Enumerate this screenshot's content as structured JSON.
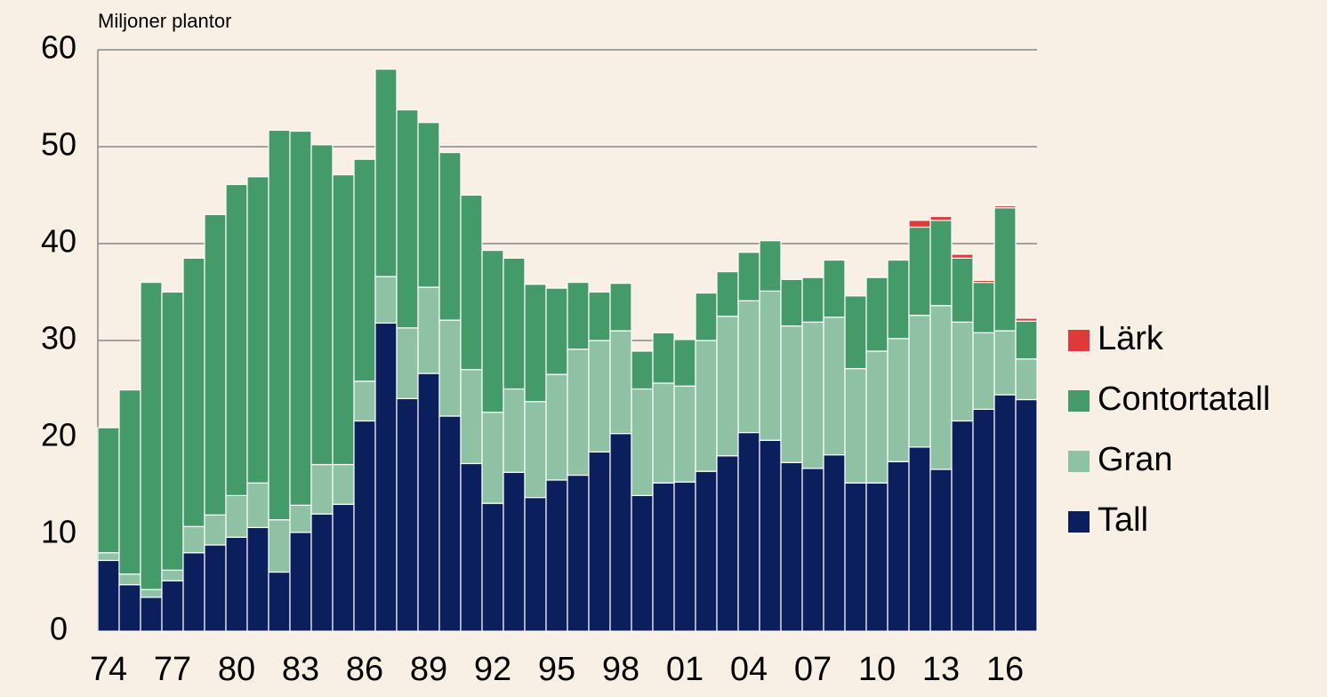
{
  "chart_data": {
    "type": "stacked_bar",
    "y_axis_label": "Miljoner plantor",
    "categories": [
      "74",
      null,
      null,
      "77",
      null,
      null,
      "80",
      null,
      null,
      "83",
      null,
      null,
      "86",
      null,
      null,
      "89",
      null,
      null,
      "92",
      null,
      null,
      "95",
      null,
      null,
      "98",
      null,
      null,
      "01",
      null,
      null,
      "04",
      null,
      null,
      "07",
      null,
      null,
      "10",
      null,
      null,
      "13",
      null,
      null,
      "16",
      null
    ],
    "series": [
      {
        "name": "Tall",
        "color": "#0b1f5c",
        "values": [
          7.3,
          4.8,
          3.5,
          5.2,
          8.1,
          8.9,
          9.7,
          10.7,
          6.1,
          10.2,
          12.1,
          13.1,
          21.7,
          31.8,
          24.0,
          26.6,
          22.2,
          17.3,
          13.2,
          16.4,
          13.8,
          15.6,
          16.1,
          18.5,
          20.4,
          14.0,
          15.3,
          15.4,
          16.5,
          18.1,
          20.5,
          19.7,
          17.4,
          16.8,
          18.2,
          15.3,
          15.3,
          17.5,
          19.0,
          16.7,
          21.7,
          22.9,
          24.4,
          23.9
        ]
      },
      {
        "name": "Gran",
        "color": "#8fc1a5",
        "values": [
          0.8,
          1.1,
          0.8,
          1.1,
          2.7,
          3.1,
          4.3,
          4.6,
          5.4,
          2.8,
          5.1,
          4.1,
          4.1,
          4.8,
          7.3,
          8.9,
          9.9,
          9.7,
          9.4,
          8.6,
          9.9,
          10.9,
          13.0,
          11.5,
          10.6,
          11.0,
          10.3,
          9.9,
          13.5,
          14.4,
          13.6,
          15.4,
          14.1,
          15.1,
          14.2,
          11.8,
          13.6,
          12.7,
          13.6,
          16.9,
          10.2,
          7.9,
          6.6,
          4.2
        ]
      },
      {
        "name": "Contortatall",
        "color": "#459a6a",
        "values": [
          12.9,
          19.0,
          31.7,
          28.7,
          27.7,
          31.0,
          32.1,
          31.6,
          40.2,
          38.6,
          33.0,
          29.9,
          22.9,
          21.4,
          22.5,
          17.0,
          17.3,
          18.0,
          16.7,
          13.5,
          12.1,
          8.9,
          6.9,
          5.0,
          4.9,
          3.9,
          5.2,
          4.8,
          4.9,
          4.6,
          5.0,
          5.2,
          4.8,
          4.6,
          5.9,
          7.5,
          7.6,
          8.1,
          9.1,
          8.8,
          6.6,
          5.2,
          12.7,
          3.9
        ]
      },
      {
        "name": "Lärk",
        "color": "#e0393a",
        "values": [
          0,
          0,
          0,
          0,
          0,
          0,
          0,
          0,
          0,
          0,
          0,
          0,
          0,
          0,
          0,
          0,
          0,
          0,
          0,
          0,
          0,
          0,
          0,
          0,
          0,
          0,
          0,
          0,
          0,
          0,
          0,
          0,
          0,
          0,
          0,
          0,
          0,
          0,
          0.7,
          0.4,
          0.4,
          0.2,
          0.2,
          0.3
        ]
      }
    ],
    "ylim": [
      0,
      60
    ],
    "yticks": [
      0,
      10,
      20,
      30,
      40,
      50,
      60
    ],
    "grid": true,
    "legend": "right"
  }
}
